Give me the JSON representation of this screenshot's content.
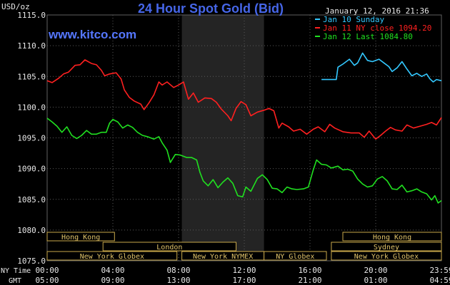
{
  "chart_data": {
    "type": "line",
    "title": "24 Hour Spot Gold (Bid)",
    "watermark": "www.kitco.com",
    "timestamp": "January 12, 2016 21:36",
    "ylabel": "USD/oz",
    "ylim": [
      1075,
      1115
    ],
    "y_ticks": [
      "1115.0",
      "1110.0",
      "1105.0",
      "1100.0",
      "1095.0",
      "1090.0",
      "1085.0",
      "1080.0",
      "1075.0"
    ],
    "xlim": [
      0,
      24
    ],
    "x_ticks": [
      {
        "x": 0,
        "ny": "00:00",
        "gmt": "05:00"
      },
      {
        "x": 4,
        "ny": "04:00",
        "gmt": "09:00"
      },
      {
        "x": 8,
        "ny": "08:00",
        "gmt": "13:00"
      },
      {
        "x": 12,
        "ny": "12:00",
        "gmt": "17:00"
      },
      {
        "x": 16,
        "ny": "16:00",
        "gmt": "21:00"
      },
      {
        "x": 20,
        "ny": "20:00",
        "gmt": "01:00"
      },
      {
        "x": 24,
        "ny": "23:59",
        "gmt": "04:59"
      }
    ],
    "x_axis_labels": {
      "ny": "NY Time",
      "gmt": "GMT"
    },
    "highlight_range": [
      8.2,
      13.2
    ],
    "grid": true,
    "legend_position": "top-right",
    "series": [
      {
        "name": "Jan 10 Sunday",
        "color": "#33c8ff",
        "points": [
          [
            16.7,
            1104.5
          ],
          [
            17.6,
            1104.5
          ],
          [
            17.7,
            1106.5
          ],
          [
            18,
            1107
          ],
          [
            18.4,
            1107.8
          ],
          [
            18.7,
            1106.8
          ],
          [
            18.9,
            1107.2
          ],
          [
            19.2,
            1108.8
          ],
          [
            19.5,
            1107.6
          ],
          [
            19.8,
            1107.4
          ],
          [
            20.2,
            1107.8
          ],
          [
            20.5,
            1107.2
          ],
          [
            20.8,
            1106.6
          ],
          [
            21,
            1105.8
          ],
          [
            21.3,
            1106.4
          ],
          [
            21.6,
            1107.4
          ],
          [
            21.9,
            1106.2
          ],
          [
            22.2,
            1105.1
          ],
          [
            22.5,
            1105.5
          ],
          [
            22.8,
            1105
          ],
          [
            23.1,
            1105.4
          ],
          [
            23.3,
            1104.6
          ],
          [
            23.5,
            1104.1
          ],
          [
            23.7,
            1104.5
          ],
          [
            24,
            1104.3
          ]
        ]
      },
      {
        "name": "Jan 11 NY close 1094.20",
        "color": "#ff2020",
        "points": [
          [
            0,
            1104.3
          ],
          [
            0.3,
            1104
          ],
          [
            0.7,
            1104.7
          ],
          [
            1,
            1105.4
          ],
          [
            1.3,
            1105.7
          ],
          [
            1.7,
            1106.8
          ],
          [
            2,
            1106.9
          ],
          [
            2.3,
            1107.7
          ],
          [
            2.7,
            1107.1
          ],
          [
            3,
            1106.9
          ],
          [
            3.3,
            1106
          ],
          [
            3.5,
            1105.1
          ],
          [
            3.8,
            1105.4
          ],
          [
            4.2,
            1105.6
          ],
          [
            4.5,
            1104.6
          ],
          [
            4.7,
            1102.8
          ],
          [
            5,
            1101.6
          ],
          [
            5.3,
            1101
          ],
          [
            5.7,
            1100.5
          ],
          [
            5.9,
            1099.6
          ],
          [
            6.2,
            1100.7
          ],
          [
            6.5,
            1102
          ],
          [
            6.8,
            1104.1
          ],
          [
            7,
            1103.6
          ],
          [
            7.3,
            1104.1
          ],
          [
            7.7,
            1103.2
          ],
          [
            8,
            1103.6
          ],
          [
            8.3,
            1104.1
          ],
          [
            8.6,
            1101.3
          ],
          [
            8.9,
            1102.3
          ],
          [
            9.2,
            1100.8
          ],
          [
            9.6,
            1101.5
          ],
          [
            10,
            1101.4
          ],
          [
            10.3,
            1100.8
          ],
          [
            10.6,
            1099.7
          ],
          [
            11,
            1098.6
          ],
          [
            11.2,
            1097.8
          ],
          [
            11.5,
            1099.8
          ],
          [
            11.8,
            1100.9
          ],
          [
            12.1,
            1100.4
          ],
          [
            12.4,
            1098.6
          ],
          [
            12.8,
            1099.2
          ],
          [
            13.2,
            1099.5
          ],
          [
            13.5,
            1099.8
          ],
          [
            13.8,
            1099.4
          ],
          [
            14.1,
            1096.6
          ],
          [
            14.3,
            1097.4
          ],
          [
            14.7,
            1096.8
          ],
          [
            15,
            1096.1
          ],
          [
            15.4,
            1096.4
          ],
          [
            15.8,
            1095.6
          ],
          [
            16.2,
            1096.4
          ],
          [
            16.5,
            1096.8
          ],
          [
            16.9,
            1096
          ],
          [
            17.2,
            1097.2
          ],
          [
            17.5,
            1096.6
          ],
          [
            18,
            1096
          ],
          [
            18.5,
            1095.8
          ],
          [
            19,
            1095.8
          ],
          [
            19.3,
            1095.1
          ],
          [
            19.6,
            1096.1
          ],
          [
            20,
            1094.8
          ],
          [
            20.3,
            1095.4
          ],
          [
            20.6,
            1096.1
          ],
          [
            20.9,
            1096.7
          ],
          [
            21.2,
            1096.3
          ],
          [
            21.6,
            1096.1
          ],
          [
            21.9,
            1097.1
          ],
          [
            22.3,
            1096.6
          ],
          [
            22.7,
            1096.9
          ],
          [
            23.1,
            1097.2
          ],
          [
            23.4,
            1097.5
          ],
          [
            23.7,
            1097.1
          ],
          [
            24,
            1098.3
          ]
        ]
      },
      {
        "name": "Jan 12 Last 1084.80",
        "color": "#20e020",
        "points": [
          [
            0,
            1098.2
          ],
          [
            0.3,
            1097.6
          ],
          [
            0.6,
            1096.9
          ],
          [
            0.9,
            1095.9
          ],
          [
            1.2,
            1096.8
          ],
          [
            1.5,
            1095.4
          ],
          [
            1.8,
            1094.9
          ],
          [
            2.1,
            1095.4
          ],
          [
            2.4,
            1096.2
          ],
          [
            2.7,
            1095.6
          ],
          [
            3,
            1095.6
          ],
          [
            3.3,
            1095.9
          ],
          [
            3.6,
            1095.9
          ],
          [
            3.8,
            1097.4
          ],
          [
            4,
            1098
          ],
          [
            4.3,
            1097.6
          ],
          [
            4.6,
            1096.6
          ],
          [
            4.9,
            1097.1
          ],
          [
            5.2,
            1096.7
          ],
          [
            5.5,
            1095.9
          ],
          [
            5.8,
            1095.4
          ],
          [
            6.1,
            1095.2
          ],
          [
            6.5,
            1094.8
          ],
          [
            6.8,
            1095.2
          ],
          [
            7,
            1094.2
          ],
          [
            7.3,
            1093
          ],
          [
            7.5,
            1091
          ],
          [
            7.8,
            1092.3
          ],
          [
            8.1,
            1092.2
          ],
          [
            8.5,
            1091.8
          ],
          [
            8.8,
            1091.8
          ],
          [
            9.1,
            1091.4
          ],
          [
            9.3,
            1089.4
          ],
          [
            9.5,
            1088
          ],
          [
            9.8,
            1087.2
          ],
          [
            10.1,
            1088.2
          ],
          [
            10.4,
            1086.9
          ],
          [
            10.7,
            1087.8
          ],
          [
            11,
            1088.5
          ],
          [
            11.3,
            1087.6
          ],
          [
            11.6,
            1085.6
          ],
          [
            11.9,
            1085.4
          ],
          [
            12.1,
            1087
          ],
          [
            12.4,
            1086.3
          ],
          [
            12.8,
            1088.4
          ],
          [
            13.1,
            1089
          ],
          [
            13.4,
            1088.2
          ],
          [
            13.7,
            1086.8
          ],
          [
            14,
            1086.7
          ],
          [
            14.3,
            1086.1
          ],
          [
            14.6,
            1087
          ],
          [
            14.9,
            1086.7
          ],
          [
            15.2,
            1086.6
          ],
          [
            15.6,
            1086.7
          ],
          [
            15.9,
            1087
          ],
          [
            16.2,
            1089.8
          ],
          [
            16.4,
            1091.4
          ],
          [
            16.7,
            1090.7
          ],
          [
            17,
            1090.6
          ],
          [
            17.3,
            1090.1
          ],
          [
            17.7,
            1090.4
          ],
          [
            18,
            1089.8
          ],
          [
            18.3,
            1089.9
          ],
          [
            18.6,
            1089.6
          ],
          [
            18.9,
            1088.3
          ],
          [
            19.2,
            1087.5
          ],
          [
            19.5,
            1087
          ],
          [
            19.8,
            1087.2
          ],
          [
            20.1,
            1088.3
          ],
          [
            20.4,
            1088.7
          ],
          [
            20.7,
            1088
          ],
          [
            21,
            1086.7
          ],
          [
            21.3,
            1086.6
          ],
          [
            21.6,
            1087.3
          ],
          [
            21.9,
            1086.2
          ],
          [
            22.2,
            1086.4
          ],
          [
            22.5,
            1086.7
          ],
          [
            22.8,
            1086.2
          ],
          [
            23.1,
            1085.9
          ],
          [
            23.4,
            1084.9
          ],
          [
            23.6,
            1085.6
          ],
          [
            23.8,
            1084.4
          ],
          [
            24,
            1084.8
          ]
        ]
      }
    ],
    "sessions": [
      {
        "label": "Hong Kong",
        "start": 0,
        "end": 4.1,
        "row": 1
      },
      {
        "label": "London",
        "start": 3.4,
        "end": 11.5,
        "row": 2
      },
      {
        "label": "New York Globex",
        "start": 0,
        "end": 7.9,
        "row": 3
      },
      {
        "label": "New York NYMEX",
        "start": 8.2,
        "end": 13.2,
        "row": 3
      },
      {
        "label": "NY Globex",
        "start": 13.2,
        "end": 17,
        "row": 3
      },
      {
        "label": "Sydney",
        "start": 17.3,
        "end": 24,
        "row": 2
      },
      {
        "label": "Hong Kong",
        "start": 18,
        "end": 24,
        "row": 1
      },
      {
        "label": "New York Globex",
        "start": 17.3,
        "end": 24,
        "row": 3
      }
    ]
  }
}
